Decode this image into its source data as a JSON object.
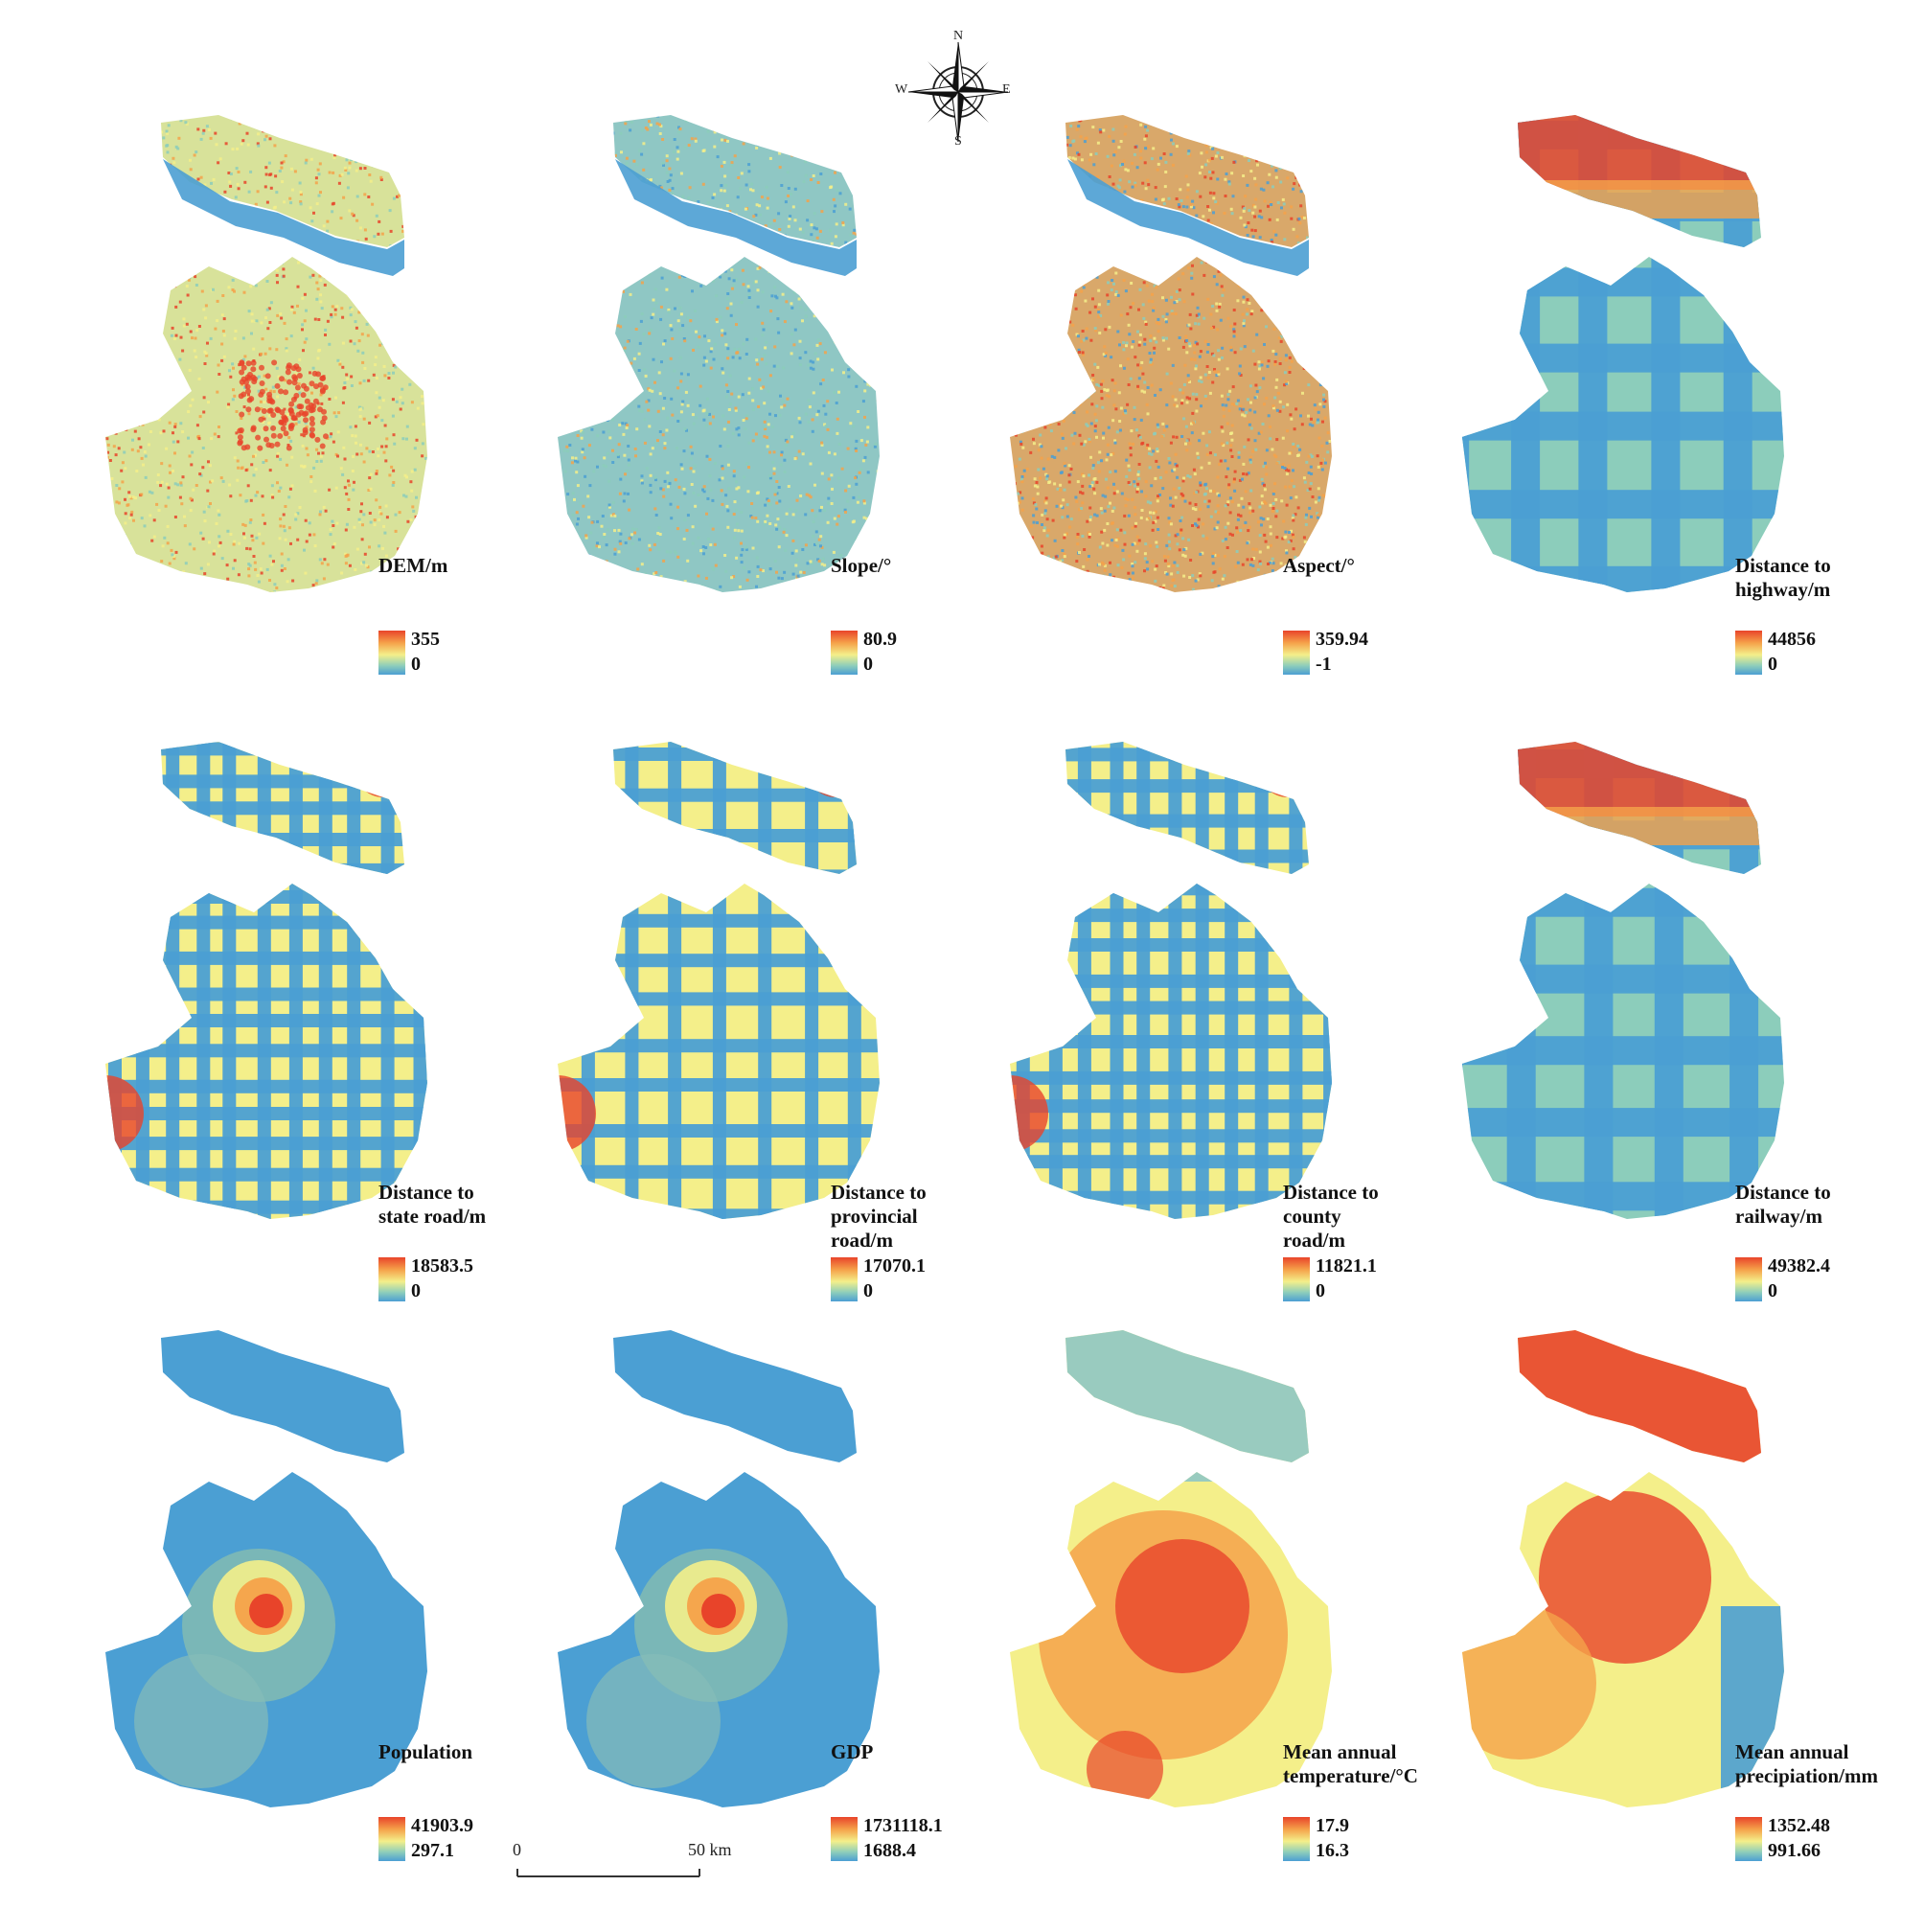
{
  "compass": {
    "n": "N",
    "e": "E",
    "s": "S",
    "w": "W"
  },
  "scale": {
    "zero": "0",
    "end": "50 km"
  },
  "colors": {
    "low": "#4b9fd3",
    "lowmid": "#8ccdbb",
    "mid": "#f4ef8a",
    "highmid": "#f5a24a",
    "high": "#e8442a"
  },
  "panels": [
    {
      "title": "DEM/m",
      "max": "355",
      "min": "0",
      "style": "speckle-warm"
    },
    {
      "title": "Slope/°",
      "max": "80.9",
      "min": "0",
      "style": "speckle-cool"
    },
    {
      "title": "Aspect/°",
      "max": "359.94",
      "min": "-1",
      "style": "speckle-mixed"
    },
    {
      "title": "Distance to\nhighway/m",
      "max": "44856",
      "min": "0",
      "style": "distance-sparse"
    },
    {
      "title": "Distance to\nstate road/m",
      "max": "18583.5",
      "min": "0",
      "style": "distance-dense"
    },
    {
      "title": "Distance to\nprovincial road/m",
      "max": "17070.1",
      "min": "0",
      "style": "distance-medium"
    },
    {
      "title": "Distance to county\nroad/m",
      "max": "11821.1",
      "min": "0",
      "style": "distance-dense"
    },
    {
      "title": "Distance to\nrailway/m",
      "max": "49382.4",
      "min": "0",
      "style": "distance-sparse"
    },
    {
      "title": "Population",
      "max": "41903.9",
      "min": "297.1",
      "style": "hotspot"
    },
    {
      "title": "GDP",
      "max": "1731118.1",
      "min": "1688.4",
      "style": "hotspot"
    },
    {
      "title": "Mean annual\ntemperature/°C",
      "max": "17.9",
      "min": "16.3",
      "style": "warm-field"
    },
    {
      "title": "Mean annual\nprecipiation/mm",
      "max": "1352.48",
      "min": "991.66",
      "style": "precip-field"
    }
  ]
}
